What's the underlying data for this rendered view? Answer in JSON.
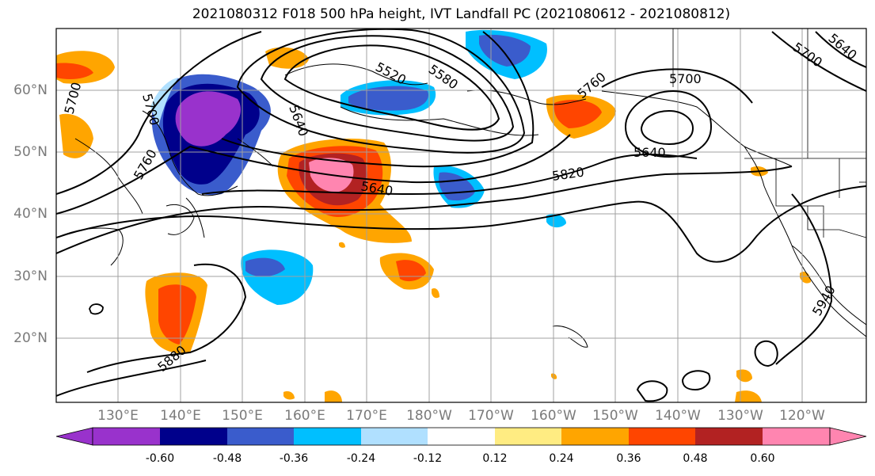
{
  "title": "2021080312 F018 500 hPa height, IVT Landfall PC (2021080612 - 2021080812)",
  "lat_labels": [
    "60°N",
    "50°N",
    "40°N",
    "30°N",
    "20°N"
  ],
  "lon_labels": [
    "130°E",
    "140°E",
    "150°E",
    "160°E",
    "170°E",
    "180°W",
    "170°W",
    "160°W",
    "150°W",
    "140°W",
    "130°W",
    "120°W"
  ],
  "contour_labels": [
    "5520",
    "5580",
    "5700",
    "5640",
    "5760",
    "5700",
    "5640",
    "5820",
    "5640",
    "5700",
    "5760",
    "5880",
    "5940",
    "5700",
    "5640"
  ],
  "colorbar": {
    "colors": [
      "#9932cc",
      "#00008b",
      "#3a5ccc",
      "#00bfff",
      "#b0e0ff",
      "#ffffff",
      "#ffec82",
      "#ffa500",
      "#ff4500",
      "#b22222",
      "#ff85b0"
    ],
    "tick_labels": [
      "-0.60",
      "-0.48",
      "-0.36",
      "-0.24",
      "-0.12",
      "0.12",
      "0.24",
      "0.36",
      "0.48",
      "0.60"
    ]
  },
  "colors": {
    "gridline": "#a0a0a0",
    "contour": "#000000",
    "axis_label": "#7a7a7a"
  }
}
